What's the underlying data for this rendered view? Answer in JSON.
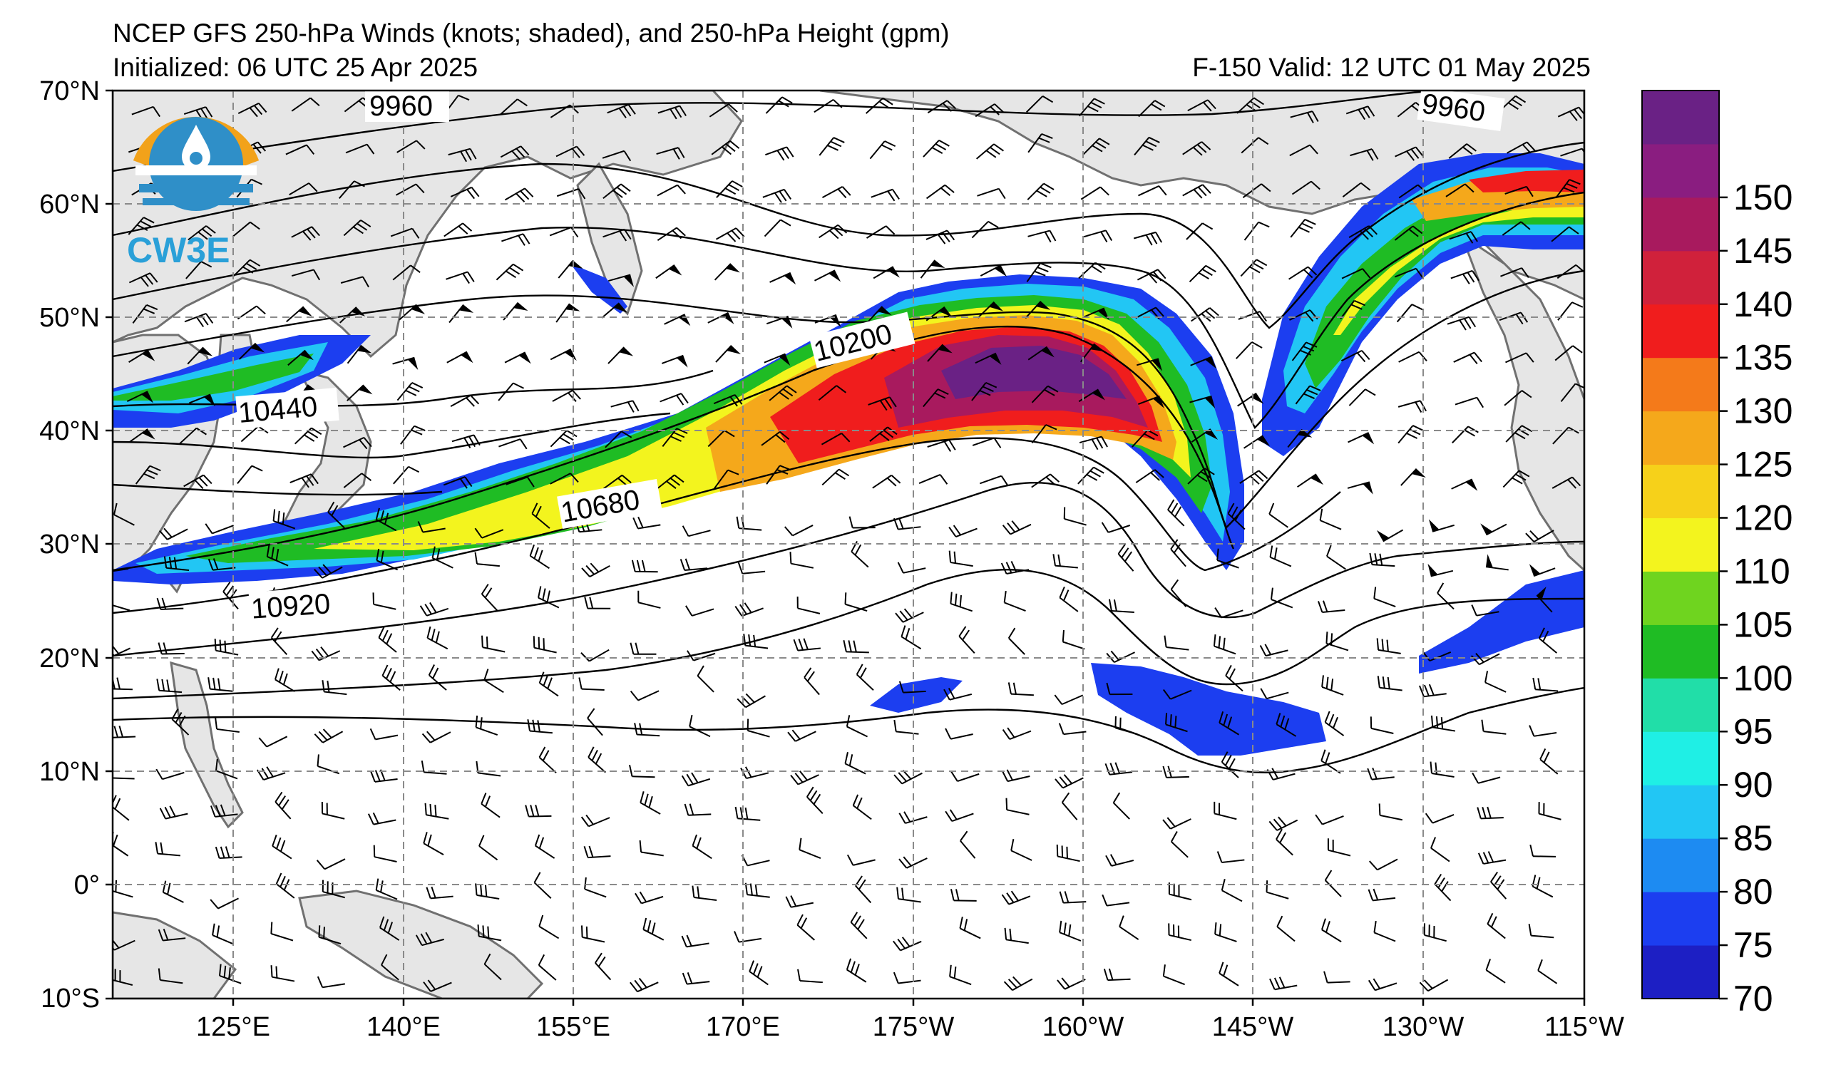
{
  "header": {
    "title": "NCEP GFS 250-hPa Winds (knots; shaded), and 250-hPa Height (gpm)",
    "initialized": "Initialized: 06 UTC 25 Apr 2025",
    "valid": "F-150  Valid: 12 UTC 01 May 2025"
  },
  "logo": {
    "text": "CW3E"
  },
  "map": {
    "lon_labels": [
      "125°E",
      "140°E",
      "155°E",
      "170°E",
      "175°W",
      "160°W",
      "145°W",
      "130°W",
      "115°W"
    ],
    "lat_labels": [
      "70°N",
      "60°N",
      "50°N",
      "40°N",
      "30°N",
      "20°N",
      "10°N",
      "0°",
      "10°S"
    ],
    "contour_labels": [
      "9960",
      "9960",
      "10200",
      "10440",
      "10680",
      "10920"
    ],
    "colors": {
      "land": "#e6e6e6",
      "coast": "#707070",
      "grid": "#8a8a8a"
    }
  },
  "colorbar": {
    "ticks": [
      "70",
      "75",
      "80",
      "85",
      "90",
      "95",
      "100",
      "105",
      "110",
      "120",
      "125",
      "130",
      "135",
      "140",
      "145",
      "150"
    ],
    "colors": [
      "#1d1fc4",
      "#1c3ef0",
      "#1d8bf2",
      "#22c6f4",
      "#1fefe5",
      "#21dea8",
      "#1fbc24",
      "#6fd41f",
      "#f3f41e",
      "#f6d11a",
      "#f5a81b",
      "#f47a1a",
      "#f01d1d",
      "#d0213b",
      "#a81a5e",
      "#8a1d80",
      "#6a2185"
    ]
  }
}
